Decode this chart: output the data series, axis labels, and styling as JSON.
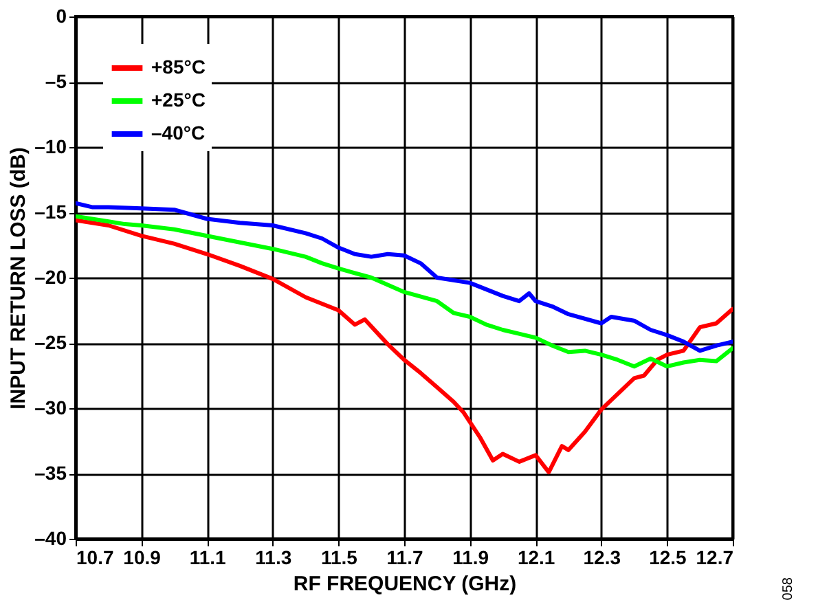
{
  "chart_data": {
    "type": "line",
    "xlabel": "RF FREQUENCY (GHz)",
    "ylabel": "INPUT RETURN LOSS (dB)",
    "xlim": [
      10.7,
      12.7
    ],
    "xticks": [
      10.7,
      10.9,
      11.1,
      11.3,
      11.5,
      11.7,
      11.9,
      12.1,
      12.3,
      12.5,
      12.7
    ],
    "ylim": [
      -40,
      0
    ],
    "yticks": [
      0,
      {
        "value": -5,
        "label": "–5"
      },
      {
        "value": -10,
        "label": "–10"
      },
      {
        "value": -15,
        "label": "–15"
      },
      {
        "value": -20,
        "label": "–20"
      },
      {
        "value": -25,
        "label": "–25"
      },
      {
        "value": -30,
        "label": "–30"
      },
      {
        "value": -35,
        "label": "–35"
      },
      {
        "value": -40,
        "label": "–40"
      }
    ],
    "grid": true,
    "legend": "top left",
    "marker": "none",
    "line_style": "solid",
    "annotations": [
      "058"
    ],
    "series": [
      {
        "name": "+85°C",
        "color": "#ff0000",
        "x": [
          10.7,
          10.8,
          10.9,
          11.0,
          11.1,
          11.2,
          11.3,
          11.4,
          11.5,
          11.55,
          11.58,
          11.65,
          11.7,
          11.75,
          11.8,
          11.85,
          11.88,
          11.93,
          11.97,
          12.0,
          12.05,
          12.1,
          12.14,
          12.18,
          12.2,
          12.25,
          12.3,
          12.35,
          12.4,
          12.43,
          12.47,
          12.5,
          12.55,
          12.6,
          12.65,
          12.7
        ],
        "values": [
          -15.6,
          -16.0,
          -16.8,
          -17.4,
          -18.2,
          -19.1,
          -20.1,
          -21.5,
          -22.5,
          -23.6,
          -23.2,
          -25.1,
          -26.3,
          -27.3,
          -28.4,
          -29.5,
          -30.3,
          -32.2,
          -34.0,
          -33.5,
          -34.1,
          -33.6,
          -34.9,
          -32.9,
          -33.2,
          -31.8,
          -30.1,
          -28.9,
          -27.7,
          -27.5,
          -26.3,
          -25.9,
          -25.6,
          -23.8,
          -23.5,
          -22.4
        ]
      },
      {
        "name": "+25°C",
        "color": "#00ff00",
        "x": [
          10.7,
          10.8,
          10.85,
          10.9,
          11.0,
          11.1,
          11.2,
          11.3,
          11.4,
          11.45,
          11.5,
          11.6,
          11.7,
          11.8,
          11.85,
          11.9,
          11.95,
          12.0,
          12.1,
          12.15,
          12.2,
          12.25,
          12.3,
          12.35,
          12.4,
          12.45,
          12.5,
          12.55,
          12.6,
          12.65,
          12.7
        ],
        "values": [
          -15.3,
          -15.7,
          -15.9,
          -16.0,
          -16.3,
          -16.8,
          -17.3,
          -17.8,
          -18.4,
          -18.9,
          -19.3,
          -20.0,
          -21.1,
          -21.8,
          -22.7,
          -23.0,
          -23.6,
          -24.0,
          -24.6,
          -25.2,
          -25.7,
          -25.6,
          -25.9,
          -26.3,
          -26.8,
          -26.2,
          -26.8,
          -26.5,
          -26.3,
          -26.4,
          -25.4
        ]
      },
      {
        "name": "–40°C",
        "color": "#0000ff",
        "x": [
          10.7,
          10.75,
          10.8,
          10.9,
          11.0,
          11.1,
          11.2,
          11.3,
          11.4,
          11.45,
          11.5,
          11.55,
          11.6,
          11.65,
          11.7,
          11.75,
          11.8,
          11.9,
          12.0,
          12.05,
          12.08,
          12.1,
          12.15,
          12.2,
          12.3,
          12.33,
          12.4,
          12.45,
          12.5,
          12.55,
          12.6,
          12.65,
          12.7
        ],
        "values": [
          -14.3,
          -14.6,
          -14.6,
          -14.7,
          -14.8,
          -15.5,
          -15.8,
          -16.0,
          -16.6,
          -17.0,
          -17.7,
          -18.2,
          -18.4,
          -18.2,
          -18.3,
          -18.9,
          -20.0,
          -20.4,
          -21.4,
          -21.8,
          -21.2,
          -21.8,
          -22.2,
          -22.8,
          -23.5,
          -23.0,
          -23.3,
          -24.0,
          -24.4,
          -24.9,
          -25.6,
          -25.2,
          -24.9
        ]
      }
    ]
  }
}
